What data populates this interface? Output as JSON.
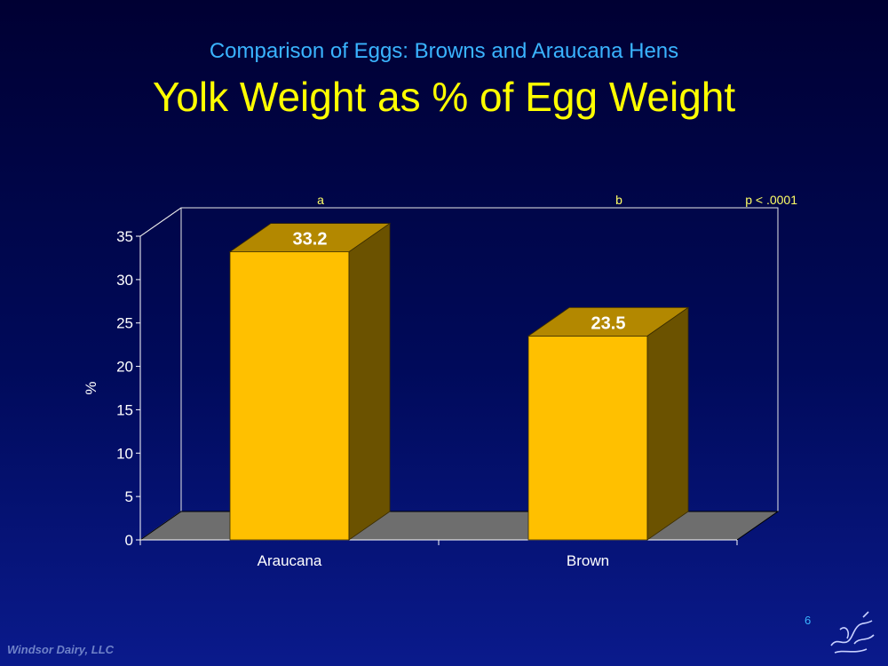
{
  "header": {
    "subtitle": "Comparison of Eggs: Browns and Araucana Hens",
    "title": "Yolk Weight as % of Egg Weight"
  },
  "chart_data": {
    "type": "bar",
    "title": "Yolk Weight as % of Egg Weight",
    "categories": [
      "Araucana",
      "Brown"
    ],
    "values": [
      33.2,
      23.5
    ],
    "value_labels": [
      "33.2",
      "23.5"
    ],
    "significance_letters": [
      "a",
      "b"
    ],
    "p_value_note": "p < .0001",
    "xlabel": "",
    "ylabel": "%",
    "ylim": [
      0,
      35
    ],
    "yticks": [
      0,
      5,
      10,
      15,
      20,
      25,
      30,
      35
    ],
    "colors": {
      "bar_front": "#ffc000",
      "bar_top": "#b38800",
      "bar_side": "#6b5200",
      "floor": "#6e6e6e",
      "axis_text": "#ffffff",
      "annotation": "#ffff66"
    }
  },
  "footer": {
    "company": "Windsor Dairy, LLC",
    "page_number": "6"
  }
}
